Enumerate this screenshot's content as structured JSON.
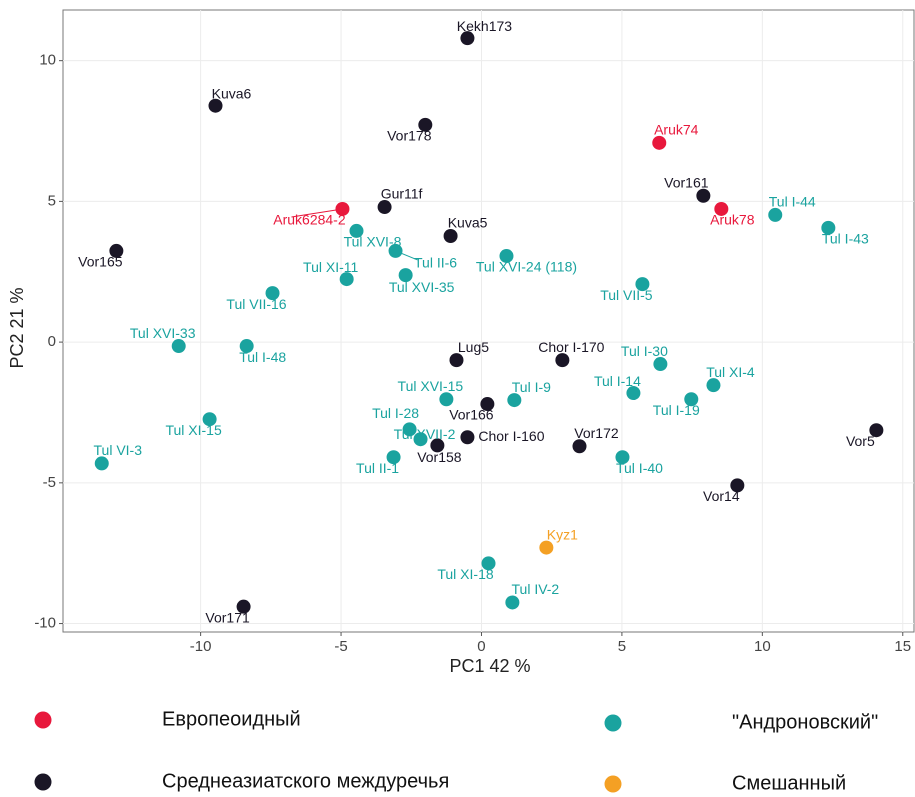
{
  "chart_data": {
    "type": "scatter",
    "x_label": "PC1 42 %",
    "y_label": "PC2 21 %",
    "xlim": [
      -14.9,
      15.4
    ],
    "ylim": [
      -10.3,
      11.8
    ],
    "xticks": [
      -10,
      -5,
      0,
      5,
      10,
      15
    ],
    "yticks": [
      -10,
      -5,
      0,
      5,
      10
    ],
    "grid": true,
    "series": [
      {
        "name": "Европеоидный",
        "color": "#e8183c",
        "labels": [
          "Aruk74",
          "Aruk6284-2",
          "Aruk78"
        ],
        "x": [
          6.33,
          -4.95,
          8.54
        ],
        "values": [
          7.08,
          4.73,
          4.73
        ]
      },
      {
        "name": "Среднеазиатского междуречья",
        "color": "#1a1626",
        "labels": [
          "Kekh173",
          "Kuva6",
          "Vor178",
          "Vor161",
          "Gur11f",
          "Kuva5",
          "Vor165",
          "Lug5",
          "Chor I-170",
          "Vor166",
          "Chor I-160",
          "Vor158",
          "Vor172",
          "Vor5",
          "Vor14",
          "Vor171"
        ],
        "x": [
          -0.5,
          -9.47,
          -2.0,
          7.9,
          -3.45,
          -1.1,
          -13.0,
          -0.89,
          2.88,
          0.21,
          -0.5,
          -1.57,
          3.49,
          14.06,
          9.11,
          -8.47
        ],
        "values": [
          10.8,
          8.4,
          7.72,
          5.2,
          4.8,
          3.77,
          3.24,
          -0.64,
          -0.64,
          -2.2,
          -3.38,
          -3.67,
          -3.7,
          -3.13,
          -5.09,
          -9.4
        ]
      },
      {
        "name": "\"Андроновский\"",
        "color": "#1aa39f",
        "labels": [
          "Tul I-44",
          "Tul I-43",
          "Tul XVI-8",
          "Tul II-6",
          "Tul XVI-24 (118)",
          "Tul XI-11",
          "Tul XVI-35",
          "Tul VII-16",
          "Tul VII-5",
          "Tul XVI-33",
          "Tul I-48",
          "Tul I-30",
          "Tul XI-4",
          "Tul I-14",
          "Tul I-19",
          "Tul XVI-15",
          "Tul I-9",
          "Tul XI-15",
          "Tul I-28",
          "Tul XVII-2",
          "Tul II-1",
          "Tul VI-3",
          "Tul I-40",
          "Tul XI-18",
          "Tul IV-2"
        ],
        "x": [
          10.46,
          12.35,
          -4.45,
          -3.06,
          0.89,
          -4.8,
          -2.7,
          -7.44,
          5.73,
          -10.78,
          -8.36,
          6.37,
          8.26,
          5.41,
          7.47,
          -1.25,
          1.17,
          -9.68,
          -2.56,
          -2.17,
          -3.13,
          -13.52,
          5.02,
          0.25,
          1.1
        ],
        "values": [
          4.52,
          4.06,
          3.95,
          3.24,
          3.06,
          2.24,
          2.38,
          1.74,
          2.06,
          -0.14,
          -0.14,
          -0.78,
          -1.53,
          -1.81,
          -2.03,
          -2.03,
          -2.06,
          -2.74,
          -3.1,
          -3.45,
          -4.09,
          -4.31,
          -4.09,
          -7.86,
          -9.25
        ]
      },
      {
        "name": "Смешанный",
        "color": "#f4a024",
        "labels": [
          "Kyz1"
        ],
        "x": [
          2.31
        ],
        "values": [
          -7.3
        ]
      }
    ]
  }
}
